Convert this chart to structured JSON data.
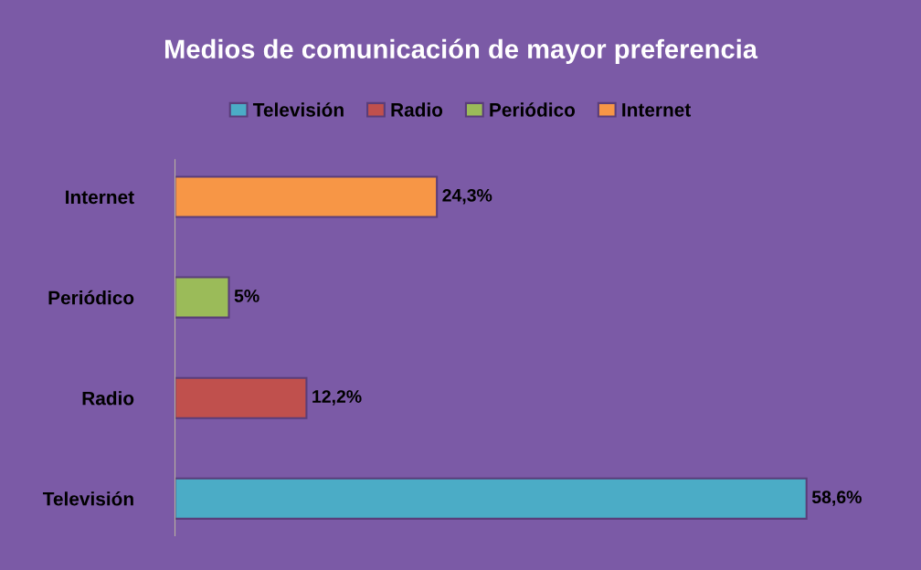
{
  "chart_data": {
    "type": "bar",
    "orientation": "horizontal",
    "title": "Medios de comunicación de mayor preferencia",
    "categories": [
      "Internet",
      "Periódico",
      "Radio",
      "Televisión"
    ],
    "series": [
      {
        "name": "Televisión",
        "color": "#4bacc6",
        "values": [
          null,
          null,
          null,
          58.6
        ],
        "value_labels": [
          null,
          null,
          null,
          "58,6%"
        ]
      },
      {
        "name": "Radio",
        "color": "#c0504d",
        "values": [
          null,
          null,
          12.2,
          null
        ],
        "value_labels": [
          null,
          null,
          "12,2%",
          null
        ]
      },
      {
        "name": "Periódico",
        "color": "#9bbb59",
        "values": [
          null,
          5,
          null,
          null
        ],
        "value_labels": [
          null,
          "5%",
          null,
          null
        ]
      },
      {
        "name": "Internet",
        "color": "#f79646",
        "values": [
          24.3,
          null,
          null,
          null
        ],
        "value_labels": [
          "24,3%",
          null,
          null,
          null
        ]
      }
    ],
    "tick_labels": "y",
    "legend": "top",
    "grid": false
  }
}
